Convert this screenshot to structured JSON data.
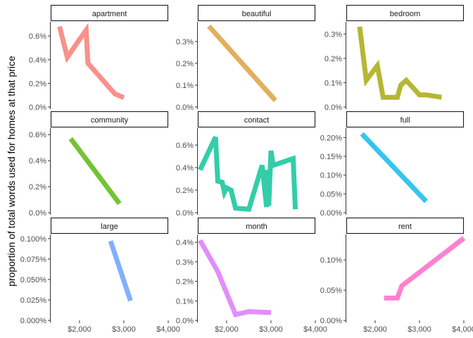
{
  "chart_data": {
    "type": "line",
    "ylabel": "proportion of total words used for homes at that price",
    "xlabel": "",
    "x_ticks": [
      2000,
      3000,
      4000
    ],
    "x_tick_labels": [
      "$2,000",
      "$3,000",
      "$4,000"
    ],
    "xlim": [
      1350,
      4000
    ],
    "line_width": 7,
    "line_opacity": 0.8,
    "panels": [
      {
        "name": "apartment",
        "color": "#F8766D",
        "ylim": [
          0.0,
          0.0072
        ],
        "y_ticks": [
          0.0,
          0.002,
          0.004,
          0.006
        ],
        "y_tick_labels": [
          "0.0%",
          "0.2%",
          "0.4%",
          "0.6%"
        ],
        "x": [
          1550,
          1725,
          1980,
          2150,
          2190,
          2800,
          3000
        ],
        "y": [
          0.0068,
          0.0042,
          0.0056,
          0.0065,
          0.0037,
          0.0011,
          0.0008
        ]
      },
      {
        "name": "beautiful",
        "color": "#DB9B33",
        "ylim": [
          0.0,
          0.0039
        ],
        "y_ticks": [
          0.0,
          0.001,
          0.002,
          0.003
        ],
        "y_tick_labels": [
          "0.0%",
          "0.1%",
          "0.2%",
          "0.3%"
        ],
        "x": [
          1600,
          3100
        ],
        "y": [
          0.0037,
          0.0003
        ]
      },
      {
        "name": "bedroom",
        "color": "#A3A500",
        "ylim": [
          0.0,
          0.0035
        ],
        "y_ticks": [
          0.0,
          0.001,
          0.002,
          0.003
        ],
        "y_tick_labels": [
          "0.0%",
          "0.1%",
          "0.2%",
          "0.3%"
        ],
        "x": [
          1650,
          1800,
          2050,
          2180,
          2300,
          2500,
          2580,
          2700,
          3000,
          3150,
          3500
        ],
        "y": [
          0.0033,
          0.0011,
          0.0017,
          0.0004,
          0.0004,
          0.0004,
          0.0009,
          0.0011,
          0.0005,
          0.0005,
          0.0004
        ]
      },
      {
        "name": "community",
        "color": "#53B400",
        "ylim": [
          0.0,
          0.0065
        ],
        "y_ticks": [
          0.0,
          0.002,
          0.004,
          0.006
        ],
        "y_tick_labels": [
          "0.0%",
          "0.2%",
          "0.4%",
          "0.6%"
        ],
        "x": [
          1800,
          2900
        ],
        "y": [
          0.0057,
          0.0007
        ]
      },
      {
        "name": "contact",
        "color": "#00C094",
        "ylim": [
          0.0,
          0.0075
        ],
        "y_ticks": [
          0.0,
          0.002,
          0.004,
          0.006
        ],
        "y_tick_labels": [
          "0.0%",
          "0.2%",
          "0.4%",
          "0.6%"
        ],
        "x": [
          1400,
          1750,
          1800,
          1900,
          1950,
          2000,
          2100,
          2200,
          2500,
          2800,
          2900,
          2920,
          2950,
          3000,
          3050,
          3500,
          3550
        ],
        "y": [
          0.0038,
          0.0067,
          0.0028,
          0.0027,
          0.0018,
          0.0022,
          0.002,
          0.0004,
          0.0003,
          0.0042,
          0.0005,
          0.0038,
          0.0006,
          0.0055,
          0.0042,
          0.0048,
          0.0003
        ]
      },
      {
        "name": "full",
        "color": "#00B6EB",
        "ylim": [
          0.0,
          0.00225
        ],
        "y_ticks": [
          0.0,
          0.0005,
          0.001,
          0.0015,
          0.002
        ],
        "y_tick_labels": [
          "0.00%",
          "0.05%",
          "0.10%",
          "0.15%",
          "0.20%"
        ],
        "x": [
          1700,
          3150
        ],
        "y": [
          0.0021,
          0.0003
        ]
      },
      {
        "name": "large",
        "color": "#619CFF",
        "ylim": [
          0.0,
          0.00105
        ],
        "y_ticks": [
          0.0,
          0.00025,
          0.0005,
          0.00075,
          0.001
        ],
        "y_tick_labels": [
          "0.000%",
          "0.025%",
          "0.050%",
          "0.075%",
          "0.100%"
        ],
        "x": [
          2700,
          3150
        ],
        "y": [
          0.00097,
          0.00024
        ]
      },
      {
        "name": "month",
        "color": "#DB72FB",
        "ylim": [
          0.0,
          0.0044
        ],
        "y_ticks": [
          0.0,
          0.001,
          0.002,
          0.003,
          0.004
        ],
        "y_tick_labels": [
          "0.0%",
          "0.1%",
          "0.2%",
          "0.3%",
          "0.4%"
        ],
        "x": [
          1400,
          1800,
          2200,
          2500,
          3000
        ],
        "y": [
          0.0041,
          0.0025,
          0.0003,
          0.00045,
          0.0004
        ]
      },
      {
        "name": "rent",
        "color": "#FF61C3",
        "ylim": [
          0.0,
          0.00142
        ],
        "y_ticks": [
          0.0,
          0.0005,
          0.001
        ],
        "y_tick_labels": [
          "0.00%",
          "0.05%",
          "0.10%"
        ],
        "x": [
          2200,
          2500,
          2600,
          4000
        ],
        "y": [
          0.00037,
          0.00037,
          0.00057,
          0.00136
        ]
      }
    ]
  }
}
